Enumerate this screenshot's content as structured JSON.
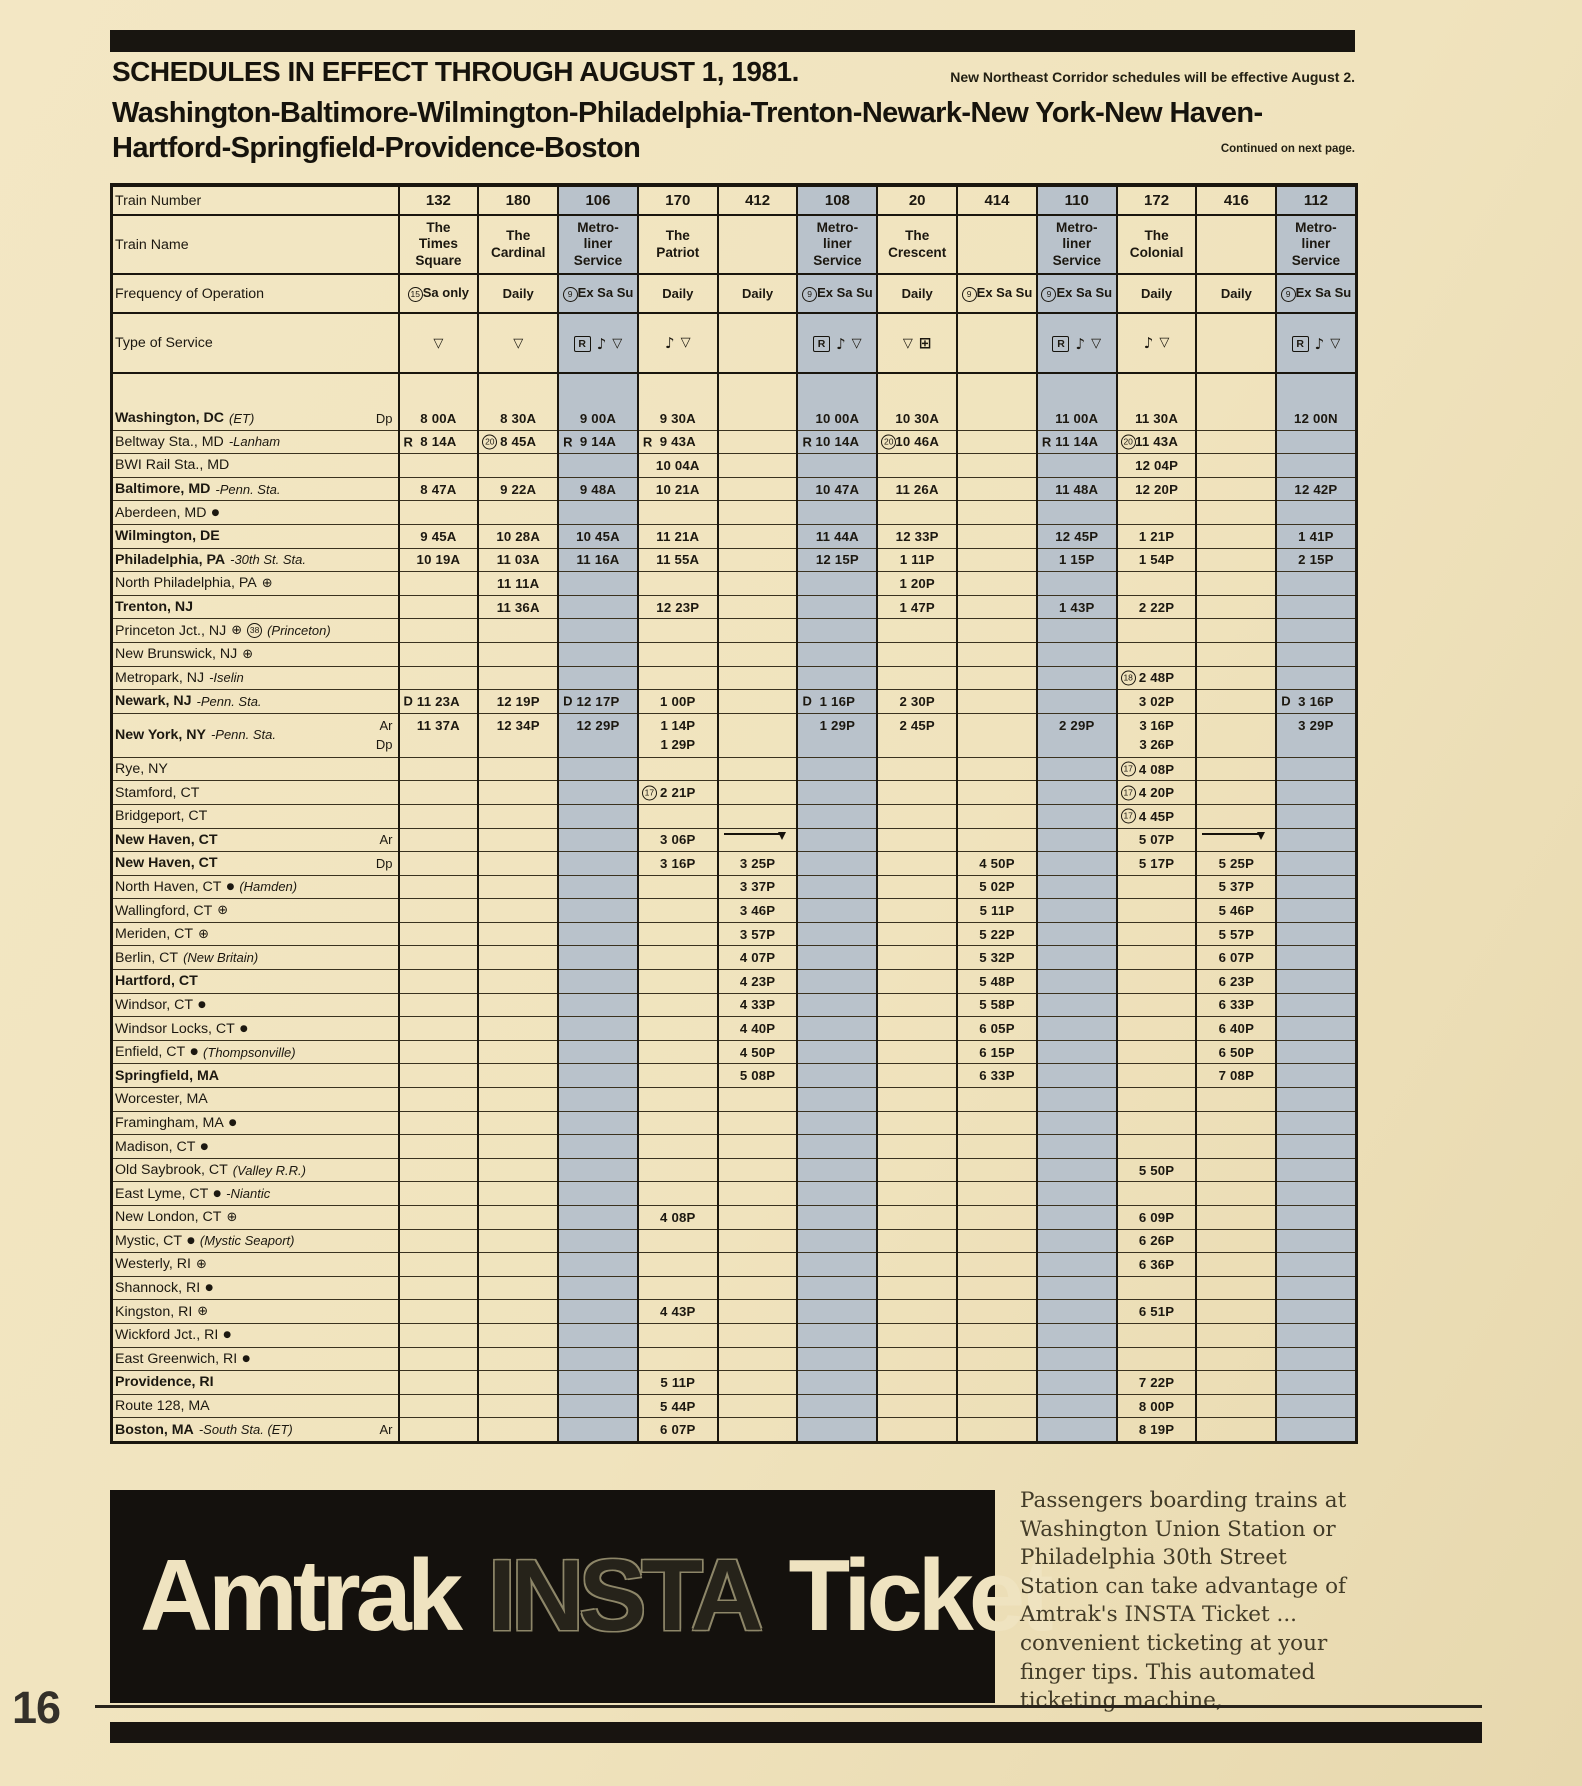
{
  "page": {
    "title": "SCHEDULES IN EFFECT THROUGH AUGUST 1, 1981.",
    "title_note": "New Northeast Corridor schedules will be effective August 2.",
    "route_line1": "Washington-Baltimore-Wilmington-Philadelphia-Trenton-Newark-New York-New Haven-",
    "route_line2": "Hartford-Springfield-Providence-Boston",
    "continued_note": "Continued on next page.",
    "page_number": "16"
  },
  "table": {
    "row_headers": {
      "number": "Train Number",
      "name": "Train Name",
      "frequency": "Frequency of Operation",
      "service": "Type of Service"
    },
    "trains": [
      {
        "number": "132",
        "name": "The\nTimes\nSquare",
        "frequency": {
          "note": "15",
          "text": "Sa only"
        },
        "service": [
          "bar"
        ],
        "shaded": false
      },
      {
        "number": "180",
        "name": "The\nCardinal",
        "frequency": {
          "text": "Daily"
        },
        "service": [
          "bar"
        ],
        "shaded": false
      },
      {
        "number": "106",
        "name": "Metro-\nliner\nService",
        "frequency": {
          "note": "9",
          "text": "Ex Sa Su"
        },
        "service": [
          "reserved",
          "snack",
          "bar"
        ],
        "shaded": true
      },
      {
        "number": "170",
        "name": "The\nPatriot",
        "frequency": {
          "text": "Daily"
        },
        "service": [
          "snack",
          "bar"
        ],
        "shaded": false
      },
      {
        "number": "412",
        "name": "",
        "frequency": {
          "text": "Daily"
        },
        "service": [],
        "shaded": false
      },
      {
        "number": "108",
        "name": "Metro-\nliner\nService",
        "frequency": {
          "note": "9",
          "text": "Ex Sa Su"
        },
        "service": [
          "reserved",
          "snack",
          "bar"
        ],
        "shaded": true
      },
      {
        "number": "20",
        "name": "The\nCrescent",
        "frequency": {
          "text": "Daily"
        },
        "service": [
          "bar",
          "meal"
        ],
        "shaded": false
      },
      {
        "number": "414",
        "name": "",
        "frequency": {
          "note": "9",
          "text": "Ex Sa Su"
        },
        "service": [],
        "shaded": false
      },
      {
        "number": "110",
        "name": "Metro-\nliner\nService",
        "frequency": {
          "note": "9",
          "text": "Ex Sa Su"
        },
        "service": [
          "reserved",
          "snack",
          "bar"
        ],
        "shaded": true
      },
      {
        "number": "172",
        "name": "The\nColonial",
        "frequency": {
          "text": "Daily"
        },
        "service": [
          "snack",
          "bar"
        ],
        "shaded": false
      },
      {
        "number": "416",
        "name": "",
        "frequency": {
          "text": "Daily"
        },
        "service": [],
        "shaded": false
      },
      {
        "number": "112",
        "name": "Metro-\nliner\nService",
        "frequency": {
          "note": "9",
          "text": "Ex Sa Su"
        },
        "service": [
          "reserved",
          "snack",
          "bar"
        ],
        "shaded": true
      }
    ],
    "stations": [
      {
        "name": "Washington, DC",
        "bold": true,
        "note": "(ET)",
        "ardp": "Dp",
        "cells": [
          "8 00A",
          "8 30A",
          "9 00A",
          "9 30A",
          "",
          "10 00A",
          "10 30A",
          "",
          "11 00A",
          "11 30A",
          "",
          "12 00N"
        ]
      },
      {
        "name": "Beltway Sta., MD",
        "note": "-Lanham",
        "cells": [
          "R 8 14A",
          "(20) 8 45A",
          "R 9 14A",
          "R 9 43A",
          "",
          "R 10 14A",
          "(20) 10 46A",
          "",
          "R 11 14A",
          "(20) 11 43A",
          "",
          ""
        ]
      },
      {
        "name": "BWI Rail Sta., MD",
        "cells": [
          "",
          "",
          "",
          "10 04A",
          "",
          "",
          "",
          "",
          "",
          "12 04P",
          "",
          ""
        ]
      },
      {
        "name": "Baltimore, MD",
        "bold": true,
        "note": "-Penn. Sta.",
        "cells": [
          "8 47A",
          "9 22A",
          "9 48A",
          "10 21A",
          "",
          "10 47A",
          "11 26A",
          "",
          "11 48A",
          "12 20P",
          "",
          "12 42P"
        ]
      },
      {
        "name": "Aberdeen, MD",
        "symbols": [
          "dot"
        ],
        "cells": [
          "",
          "",
          "",
          "",
          "",
          "",
          "",
          "",
          "",
          "",
          "",
          ""
        ]
      },
      {
        "name": "Wilmington, DE",
        "bold": true,
        "cells": [
          "9 45A",
          "10 28A",
          "10 45A",
          "11 21A",
          "",
          "11 44A",
          "12 33P",
          "",
          "12 45P",
          "1 21P",
          "",
          "1 41P"
        ]
      },
      {
        "name": "Philadelphia, PA",
        "bold": true,
        "note": "-30th St. Sta.",
        "cells": [
          "10 19A",
          "11 03A",
          "11 16A",
          "11 55A",
          "",
          "12 15P",
          "1 11P",
          "",
          "1 15P",
          "1 54P",
          "",
          "2 15P"
        ]
      },
      {
        "name": "North Philadelphia, PA",
        "symbols": [
          "cross"
        ],
        "cells": [
          "",
          "11 11A",
          "",
          "",
          "",
          "",
          "1 20P",
          "",
          "",
          "",
          "",
          ""
        ]
      },
      {
        "name": "Trenton, NJ",
        "bold": true,
        "cells": [
          "",
          "11 36A",
          "",
          "12 23P",
          "",
          "",
          "1 47P",
          "",
          "1 43P",
          "2 22P",
          "",
          ""
        ]
      },
      {
        "name": "Princeton Jct., NJ",
        "symbols": [
          "cross",
          "c38"
        ],
        "note": "(Princeton)",
        "cells": [
          "",
          "",
          "",
          "",
          "",
          "",
          "",
          "",
          "",
          "",
          "",
          ""
        ]
      },
      {
        "name": "New Brunswick, NJ",
        "symbols": [
          "cross"
        ],
        "cells": [
          "",
          "",
          "",
          "",
          "",
          "",
          "",
          "",
          "",
          "",
          "",
          ""
        ]
      },
      {
        "name": "Metropark, NJ",
        "note": "-Iselin",
        "cells": [
          "",
          "",
          "",
          "",
          "",
          "",
          "",
          "",
          "",
          "(18) 2 48P",
          "",
          ""
        ]
      },
      {
        "name": "Newark, NJ",
        "bold": true,
        "note": "-Penn. Sta.",
        "cells": [
          "D 11 23A",
          "12 19P",
          "D 12 17P",
          "1 00P",
          "",
          "D 1 16P",
          "2 30P",
          "",
          "",
          "3 02P",
          "",
          "D 3 16P"
        ]
      },
      {
        "name": "New York, NY",
        "bold": true,
        "note": "-Penn. Sta.",
        "ardp": "Ar\nDp",
        "tall": true,
        "cells": [
          "11 37A",
          "12 34P",
          "12 29P",
          [
            "1 14P",
            "1 29P"
          ],
          "",
          "1 29P",
          "2 45P",
          "",
          "2 29P",
          [
            "3 16P",
            "3 26P"
          ],
          "",
          "3 29P"
        ]
      },
      {
        "name": "Rye, NY",
        "cells": [
          "",
          "",
          "",
          "",
          "",
          "",
          "",
          "",
          "",
          "(17) 4 08P",
          "",
          ""
        ]
      },
      {
        "name": "Stamford, CT",
        "cells": [
          "",
          "",
          "",
          "(17) 2 21P",
          "",
          "",
          "",
          "",
          "",
          "(17) 4 20P",
          "",
          ""
        ]
      },
      {
        "name": "Bridgeport, CT",
        "cells": [
          "",
          "",
          "",
          "",
          "",
          "",
          "",
          "",
          "",
          "(17) 4 45P",
          "",
          ""
        ]
      },
      {
        "name": "New Haven, CT",
        "bold": true,
        "ardp": "Ar",
        "cells": [
          "",
          "",
          "",
          "3 06P",
          "ARROW",
          "",
          "",
          "",
          "",
          "5 07P",
          "ARROW",
          ""
        ]
      },
      {
        "name": "New Haven, CT",
        "bold": true,
        "ardp": "Dp",
        "cells": [
          "",
          "",
          "",
          "3 16P",
          "3 25P",
          "",
          "",
          "4 50P",
          "",
          "5 17P",
          "5 25P",
          ""
        ]
      },
      {
        "name": "North Haven, CT",
        "symbols": [
          "dot"
        ],
        "note": "(Hamden)",
        "cells": [
          "",
          "",
          "",
          "",
          "3 37P",
          "",
          "",
          "5 02P",
          "",
          "",
          "5 37P",
          ""
        ]
      },
      {
        "name": "Wallingford, CT",
        "symbols": [
          "cross"
        ],
        "cells": [
          "",
          "",
          "",
          "",
          "3 46P",
          "",
          "",
          "5 11P",
          "",
          "",
          "5 46P",
          ""
        ]
      },
      {
        "name": "Meriden, CT",
        "symbols": [
          "cross"
        ],
        "cells": [
          "",
          "",
          "",
          "",
          "3 57P",
          "",
          "",
          "5 22P",
          "",
          "",
          "5 57P",
          ""
        ]
      },
      {
        "name": "Berlin, CT",
        "note": "(New Britain)",
        "cells": [
          "",
          "",
          "",
          "",
          "4 07P",
          "",
          "",
          "5 32P",
          "",
          "",
          "6 07P",
          ""
        ]
      },
      {
        "name": "Hartford, CT",
        "bold": true,
        "cells": [
          "",
          "",
          "",
          "",
          "4 23P",
          "",
          "",
          "5 48P",
          "",
          "",
          "6 23P",
          ""
        ]
      },
      {
        "name": "Windsor, CT",
        "symbols": [
          "dot"
        ],
        "cells": [
          "",
          "",
          "",
          "",
          "4 33P",
          "",
          "",
          "5 58P",
          "",
          "",
          "6 33P",
          ""
        ]
      },
      {
        "name": "Windsor Locks, CT",
        "symbols": [
          "dot"
        ],
        "cells": [
          "",
          "",
          "",
          "",
          "4 40P",
          "",
          "",
          "6 05P",
          "",
          "",
          "6 40P",
          ""
        ]
      },
      {
        "name": "Enfield, CT",
        "symbols": [
          "dot"
        ],
        "note": "(Thompsonville)",
        "cells": [
          "",
          "",
          "",
          "",
          "4 50P",
          "",
          "",
          "6 15P",
          "",
          "",
          "6 50P",
          ""
        ]
      },
      {
        "name": "Springfield, MA",
        "bold": true,
        "cells": [
          "",
          "",
          "",
          "",
          "5 08P",
          "",
          "",
          "6 33P",
          "",
          "",
          "7 08P",
          ""
        ]
      },
      {
        "name": "Worcester, MA",
        "cells": [
          "",
          "",
          "",
          "",
          "",
          "",
          "",
          "",
          "",
          "",
          "",
          ""
        ]
      },
      {
        "name": "Framingham, MA",
        "symbols": [
          "dot"
        ],
        "cells": [
          "",
          "",
          "",
          "",
          "",
          "",
          "",
          "",
          "",
          "",
          "",
          ""
        ]
      },
      {
        "name": "Madison, CT",
        "symbols": [
          "dot"
        ],
        "cells": [
          "",
          "",
          "",
          "",
          "",
          "",
          "",
          "",
          "",
          "",
          "",
          ""
        ]
      },
      {
        "name": "Old Saybrook, CT",
        "note": "(Valley R.R.)",
        "cells": [
          "",
          "",
          "",
          "",
          "",
          "",
          "",
          "",
          "",
          "5 50P",
          "",
          ""
        ]
      },
      {
        "name": "East Lyme, CT",
        "symbols": [
          "dot"
        ],
        "note": "-Niantic",
        "cells": [
          "",
          "",
          "",
          "",
          "",
          "",
          "",
          "",
          "",
          "",
          "",
          ""
        ]
      },
      {
        "name": "New London, CT",
        "symbols": [
          "cross"
        ],
        "cells": [
          "",
          "",
          "",
          "4 08P",
          "",
          "",
          "",
          "",
          "",
          "6 09P",
          "",
          ""
        ]
      },
      {
        "name": "Mystic, CT",
        "symbols": [
          "dot"
        ],
        "note": "(Mystic Seaport)",
        "cells": [
          "",
          "",
          "",
          "",
          "",
          "",
          "",
          "",
          "",
          "6 26P",
          "",
          ""
        ]
      },
      {
        "name": "Westerly, RI",
        "symbols": [
          "cross"
        ],
        "cells": [
          "",
          "",
          "",
          "",
          "",
          "",
          "",
          "",
          "",
          "6 36P",
          "",
          ""
        ]
      },
      {
        "name": "Shannock, RI",
        "symbols": [
          "dot"
        ],
        "cells": [
          "",
          "",
          "",
          "",
          "",
          "",
          "",
          "",
          "",
          "",
          "",
          ""
        ]
      },
      {
        "name": "Kingston, RI",
        "symbols": [
          "cross"
        ],
        "cells": [
          "",
          "",
          "",
          "4 43P",
          "",
          "",
          "",
          "",
          "",
          "6 51P",
          "",
          ""
        ]
      },
      {
        "name": "Wickford Jct., RI",
        "symbols": [
          "dot"
        ],
        "cells": [
          "",
          "",
          "",
          "",
          "",
          "",
          "",
          "",
          "",
          "",
          "",
          ""
        ]
      },
      {
        "name": "East Greenwich, RI",
        "symbols": [
          "dot"
        ],
        "cells": [
          "",
          "",
          "",
          "",
          "",
          "",
          "",
          "",
          "",
          "",
          "",
          ""
        ]
      },
      {
        "name": "Providence, RI",
        "bold": true,
        "cells": [
          "",
          "",
          "",
          "5 11P",
          "",
          "",
          "",
          "",
          "",
          "7 22P",
          "",
          ""
        ]
      },
      {
        "name": "Route 128, MA",
        "cells": [
          "",
          "",
          "",
          "5 44P",
          "",
          "",
          "",
          "",
          "",
          "8 00P",
          "",
          ""
        ]
      },
      {
        "name": "Boston, MA",
        "bold": true,
        "note": "-South Sta. (ET)",
        "ardp": "Ar",
        "cells": [
          "",
          "",
          "",
          "6 07P",
          "",
          "",
          "",
          "",
          "",
          "8 19P",
          "",
          ""
        ]
      }
    ]
  },
  "banner": {
    "words": [
      "Amtrak",
      "INSTA",
      "Ticket"
    ],
    "paragraph": "Passengers boarding trains at Washington Union Station or Philadelphia 30th Street Station can take advantage of Amtrak's INSTA Ticket ... convenient ticketing at your finger tips. This automated ticketing machine,"
  },
  "colors": {
    "paper": "#f0e3bd",
    "shade": "#b9c2cb",
    "ink": "#1a160e"
  }
}
